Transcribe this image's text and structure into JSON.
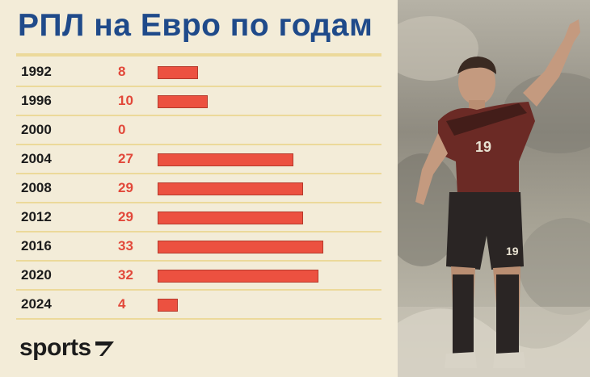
{
  "title": "РПЛ на Евро по годам",
  "logo": "sports",
  "colors": {
    "title": "#1f4a8a",
    "bar": "#ec5140",
    "value": "#e2483a",
    "background": "#f3ecd8",
    "rule": "#ecd99a"
  },
  "photo": {
    "jersey_number": "19",
    "shorts_number": "19"
  },
  "chart_data": {
    "type": "bar",
    "orientation": "horizontal",
    "title": "РПЛ на Евро по годам",
    "categories": [
      "1992",
      "1996",
      "2000",
      "2004",
      "2008",
      "2012",
      "2016",
      "2020",
      "2024"
    ],
    "values": [
      8,
      10,
      0,
      27,
      29,
      29,
      33,
      32,
      4
    ],
    "data_labels": [
      "8",
      "10",
      "0",
      "27",
      "29",
      "29",
      "33",
      "32",
      "4"
    ],
    "xlim": [
      0,
      33
    ],
    "grid": false,
    "legend": "none"
  }
}
